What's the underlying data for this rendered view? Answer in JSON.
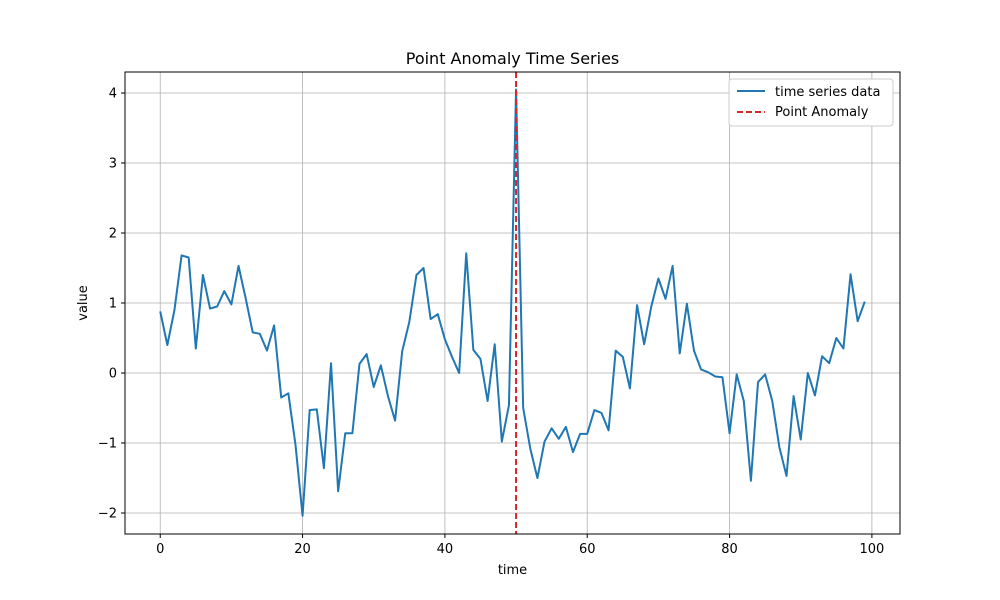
{
  "chart_data": {
    "type": "line",
    "title": "Point Anomaly Time Series",
    "xlabel": "time",
    "ylabel": "value",
    "xlim": [
      -4.95,
      103.95
    ],
    "ylim": [
      -2.3,
      4.3
    ],
    "xticks": [
      0,
      20,
      40,
      60,
      80,
      100
    ],
    "yticks": [
      -2,
      -1,
      0,
      1,
      2,
      3,
      4
    ],
    "xtick_labels": [
      "0",
      "20",
      "40",
      "60",
      "80",
      "100"
    ],
    "ytick_labels": [
      "−2",
      "−1",
      "0",
      "1",
      "2",
      "3",
      "4"
    ],
    "grid": true,
    "legend_position": "top-right",
    "series": [
      {
        "name": "time series data",
        "color": "#1f77b4",
        "x": [
          0,
          1,
          2,
          3,
          4,
          5,
          6,
          7,
          8,
          9,
          10,
          11,
          12,
          13,
          14,
          15,
          16,
          17,
          18,
          19,
          20,
          21,
          22,
          23,
          24,
          25,
          26,
          27,
          28,
          29,
          30,
          31,
          32,
          33,
          34,
          35,
          36,
          37,
          38,
          39,
          40,
          41,
          42,
          43,
          44,
          45,
          46,
          47,
          48,
          49,
          50,
          51,
          52,
          53,
          54,
          55,
          56,
          57,
          58,
          59,
          60,
          61,
          62,
          63,
          64,
          65,
          66,
          67,
          68,
          69,
          70,
          71,
          72,
          73,
          74,
          75,
          76,
          77,
          78,
          79,
          80,
          81,
          82,
          83,
          84,
          85,
          86,
          87,
          88,
          89,
          90,
          91,
          92,
          93,
          94,
          95,
          96,
          97,
          98,
          99
        ],
        "y": [
          0.88,
          0.4,
          0.9,
          1.68,
          1.65,
          0.35,
          1.4,
          0.92,
          0.95,
          1.17,
          0.98,
          1.53,
          1.07,
          0.58,
          0.56,
          0.32,
          0.68,
          -0.35,
          -0.29,
          -1.02,
          -2.04,
          -0.53,
          -0.52,
          -1.36,
          0.14,
          -1.69,
          -0.86,
          -0.86,
          0.13,
          0.27,
          -0.2,
          0.11,
          -0.33,
          -0.68,
          0.31,
          0.73,
          1.4,
          1.5,
          0.77,
          0.84,
          0.48,
          0.23,
          0.0,
          1.71,
          0.33,
          0.2,
          -0.4,
          0.41,
          -0.98,
          -0.46,
          4.05,
          -0.5,
          -1.08,
          -1.5,
          -0.98,
          -0.79,
          -0.94,
          -0.77,
          -1.13,
          -0.87,
          -0.87,
          -0.53,
          -0.57,
          -0.82,
          0.32,
          0.23,
          -0.22,
          0.97,
          0.41,
          0.95,
          1.35,
          1.06,
          1.53,
          0.28,
          0.99,
          0.32,
          0.05,
          0.01,
          -0.05,
          -0.06,
          -0.86,
          -0.02,
          -0.4,
          -1.54,
          -0.13,
          -0.02,
          -0.4,
          -1.06,
          -1.47,
          -0.33,
          -0.95,
          0.0,
          -0.32,
          0.24,
          0.14,
          0.5,
          0.35,
          1.41,
          0.74,
          1.02
        ]
      },
      {
        "name": "Point Anomaly",
        "color": "#d62728",
        "style": "dashed",
        "vline_x": 50
      }
    ]
  }
}
